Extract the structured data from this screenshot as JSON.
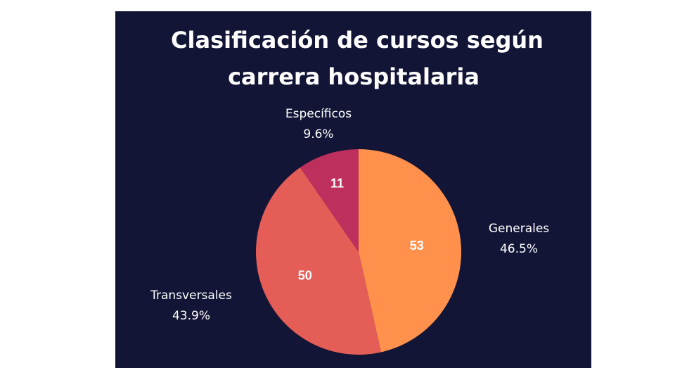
{
  "chart_data": {
    "type": "pie",
    "title": "Clasificación de cursos según carrera hospitalaria",
    "title_lines": [
      "Clasificación de cursos según",
      "carrera hospitalaria"
    ],
    "slices": [
      {
        "label": "Generales",
        "value": 53,
        "percent": "46.5%",
        "color": "#FF914D"
      },
      {
        "label": "Transversales",
        "value": 50,
        "percent": "43.9%",
        "color": "#E45D57"
      },
      {
        "label": "Específicos",
        "value": 11,
        "percent": "9.6%",
        "color": "#BD2F5C"
      }
    ],
    "start_angle": "12 o'clock",
    "direction": "clockwise"
  },
  "colors": {
    "background": "#131536",
    "text": "#ffffff"
  }
}
